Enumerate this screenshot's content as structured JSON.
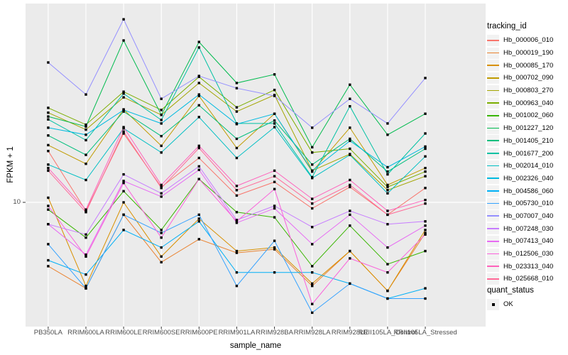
{
  "window": {
    "kind": "r-ggplot2-plot-panel"
  },
  "chart_data": {
    "type": "line",
    "title": "",
    "xlabel": "sample_name",
    "ylabel": "FPKM + 1",
    "y_scale": "log10",
    "y_tick_labels": [
      "10"
    ],
    "y_tick_value": 10,
    "ylim_approx": [
      3.5,
      52
    ],
    "grid": "major-only",
    "legend_position": "right",
    "panel_bg": "#EBEBEB",
    "grid_color": "#FFFFFF",
    "point_color": "#000000",
    "point_shape": "filled-square",
    "tick_color": "#333333",
    "axis_text_color": "#4D4D4D",
    "legend_key_bg": "#F2F2F2",
    "legend_title": "tracking_id",
    "legend2_title": "quant_status",
    "legend2_items": [
      "OK"
    ],
    "categories": [
      "PB350LA",
      "RRIM600LA",
      "RRIM600LE",
      "RRIM600SE",
      "RRIM600PE",
      "RRIM901LA",
      "RRIM928BA",
      "RRIM928LA",
      "RRIM928LE",
      "RRII105LA_Control",
      "RRII105LA_Stressed"
    ],
    "series": [
      {
        "name": "Hb_000006_010",
        "color": "#F8766D",
        "values": [
          15.5,
          9.3,
          18.0,
          11.4,
          14.6,
          10.6,
          11.9,
          9.5,
          11.4,
          9.0,
          11.3
        ]
      },
      {
        "name": "Hb_000019_190",
        "color": "#EA8331",
        "values": [
          5.8,
          4.8,
          9.0,
          6.0,
          7.3,
          6.5,
          6.7,
          4.9,
          6.6,
          4.7,
          7.7
        ]
      },
      {
        "name": "Hb_000085_170",
        "color": "#D89000",
        "values": [
          10.4,
          4.9,
          10.0,
          6.3,
          8.7,
          6.6,
          6.8,
          5.0,
          6.6,
          4.7,
          7.9
        ]
      },
      {
        "name": "Hb_000702_090",
        "color": "#C09B00",
        "values": [
          16.3,
          13.9,
          22.1,
          16.2,
          24.8,
          15.9,
          21.3,
          13.0,
          18.9,
          11.6,
          13.4
        ]
      },
      {
        "name": "Hb_000803_270",
        "color": "#A3A500",
        "values": [
          21.5,
          18.6,
          24.5,
          21.1,
          27.7,
          21.7,
          25.0,
          13.1,
          15.1,
          11.1,
          12.5
        ]
      },
      {
        "name": "Hb_000963_040",
        "color": "#7CAE00",
        "values": [
          22.4,
          19.4,
          25.7,
          22.0,
          29.2,
          22.5,
          26.1,
          15.3,
          15.8,
          11.4,
          13.0
        ]
      },
      {
        "name": "Hb_001002_060",
        "color": "#39B600",
        "values": [
          9.4,
          7.4,
          11.0,
          7.9,
          12.2,
          9.2,
          8.8,
          5.8,
          8.2,
          5.9,
          6.6
        ]
      },
      {
        "name": "Hb_001227_120",
        "color": "#00BB4E",
        "values": [
          20.8,
          19.1,
          39.8,
          21.1,
          39.3,
          27.7,
          29.8,
          16.0,
          27.3,
          17.8,
          21.3
        ]
      },
      {
        "name": "Hb_001405_210",
        "color": "#00BF7D",
        "values": [
          17.7,
          15.0,
          21.7,
          17.6,
          22.9,
          17.2,
          20.1,
          13.8,
          17.2,
          13.0,
          15.8
        ]
      },
      {
        "name": "Hb_001677_200",
        "color": "#00C1A3",
        "values": [
          20.3,
          17.0,
          25.3,
          20.2,
          37.5,
          19.6,
          19.6,
          12.4,
          22.7,
          12.7,
          18.0
        ]
      },
      {
        "name": "Hb_002014_010",
        "color": "#00BFC4",
        "values": [
          13.8,
          12.1,
          18.8,
          15.3,
          20.7,
          14.6,
          19.0,
          12.3,
          15.0,
          10.8,
          14.8
        ]
      },
      {
        "name": "Hb_002326_040",
        "color": "#00BAE0",
        "values": [
          18.9,
          17.8,
          22.0,
          19.6,
          25.1,
          19.5,
          21.3,
          13.1,
          16.9,
          13.5,
          16.1
        ]
      },
      {
        "name": "Hb_004586_060",
        "color": "#00B0F6",
        "values": [
          6.1,
          5.4,
          7.9,
          6.8,
          8.5,
          5.5,
          5.5,
          5.5,
          5.0,
          4.4,
          4.8
        ]
      },
      {
        "name": "Hb_005730_010",
        "color": "#35A2FF",
        "values": [
          7.0,
          4.8,
          9.0,
          7.7,
          9.0,
          4.9,
          7.2,
          3.9,
          5.0,
          4.4,
          4.4
        ]
      },
      {
        "name": "Hb_007007_040",
        "color": "#9590FF",
        "values": [
          33.0,
          25.1,
          47.7,
          24.2,
          29.4,
          26.5,
          24.8,
          18.9,
          24.2,
          19.6,
          28.9
        ]
      },
      {
        "name": "Hb_007248_030",
        "color": "#C77CFF",
        "values": [
          8.3,
          7.6,
          12.7,
          10.8,
          13.6,
          8.6,
          9.7,
          8.1,
          9.3,
          8.3,
          8.5
        ]
      },
      {
        "name": "Hb_007413_040",
        "color": "#E76BF3",
        "values": [
          8.3,
          6.4,
          12.0,
          10.5,
          13.2,
          8.4,
          9.5,
          7.0,
          9.0,
          6.8,
          8.2
        ]
      },
      {
        "name": "Hb_012506_030",
        "color": "#FA62DB",
        "values": [
          9.7,
          6.3,
          11.8,
          7.4,
          12.2,
          8.5,
          11.2,
          4.2,
          6.2,
          5.5,
          7.6
        ]
      },
      {
        "name": "Hb_023313_040",
        "color": "#FF62BC",
        "values": [
          13.4,
          9.4,
          19.0,
          11.6,
          16.2,
          11.5,
          13.1,
          10.3,
          12.1,
          9.3,
          10.2
        ]
      },
      {
        "name": "Hb_025668_010",
        "color": "#FF6A98",
        "values": [
          13.1,
          9.2,
          18.3,
          11.3,
          15.9,
          11.1,
          12.5,
          9.9,
          11.6,
          9.0,
          9.9
        ]
      }
    ]
  }
}
